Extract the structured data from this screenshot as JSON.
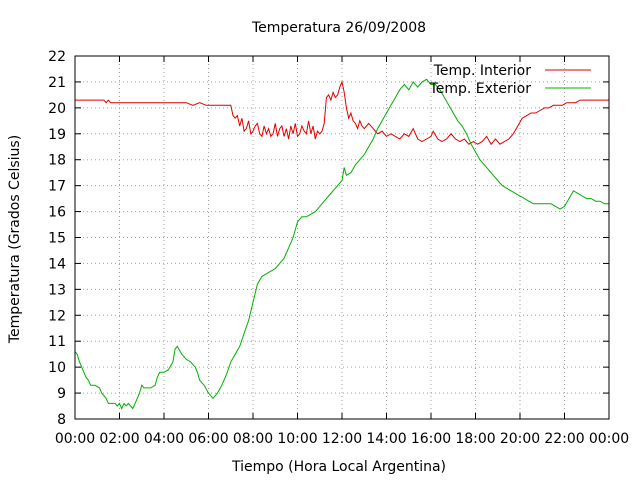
{
  "chart_data": {
    "type": "line",
    "title": "Temperatura 26/09/2008",
    "xlabel": "Tiempo (Hora Local Argentina)",
    "ylabel": "Temperatura (Grados Celsius)",
    "xlim": [
      0,
      24
    ],
    "ylim": [
      8,
      22
    ],
    "x_tick_labels": [
      "00:00",
      "02:00",
      "04:00",
      "06:00",
      "08:00",
      "10:00",
      "12:00",
      "14:00",
      "16:00",
      "18:00",
      "20:00",
      "22:00",
      "00:00"
    ],
    "y_ticks": [
      8,
      9,
      10,
      11,
      12,
      13,
      14,
      15,
      16,
      17,
      18,
      19,
      20,
      21,
      22
    ],
    "grid": true,
    "legend_position": "top-right",
    "series": [
      {
        "name": "Temp. Interior",
        "color": "#e00000",
        "points": [
          [
            0,
            20.3
          ],
          [
            0.5,
            20.3
          ],
          [
            1.0,
            20.3
          ],
          [
            1.3,
            20.3
          ],
          [
            1.4,
            20.2
          ],
          [
            1.5,
            20.3
          ],
          [
            1.6,
            20.2
          ],
          [
            2.0,
            20.2
          ],
          [
            3.0,
            20.2
          ],
          [
            4.0,
            20.2
          ],
          [
            5.0,
            20.2
          ],
          [
            5.3,
            20.1
          ],
          [
            5.6,
            20.2
          ],
          [
            5.9,
            20.1
          ],
          [
            6.2,
            20.1
          ],
          [
            6.5,
            20.1
          ],
          [
            7.0,
            20.1
          ],
          [
            7.1,
            19.7
          ],
          [
            7.2,
            19.6
          ],
          [
            7.3,
            19.7
          ],
          [
            7.4,
            19.3
          ],
          [
            7.5,
            19.6
          ],
          [
            7.6,
            19.1
          ],
          [
            7.7,
            19.2
          ],
          [
            7.8,
            19.5
          ],
          [
            7.9,
            19.0
          ],
          [
            8.0,
            19.1
          ],
          [
            8.1,
            19.3
          ],
          [
            8.2,
            19.4
          ],
          [
            8.3,
            19.0
          ],
          [
            8.4,
            18.9
          ],
          [
            8.5,
            19.3
          ],
          [
            8.6,
            19.0
          ],
          [
            8.7,
            19.2
          ],
          [
            8.8,
            18.9
          ],
          [
            8.9,
            19.0
          ],
          [
            9.0,
            19.4
          ],
          [
            9.1,
            18.9
          ],
          [
            9.2,
            19.2
          ],
          [
            9.3,
            19.3
          ],
          [
            9.4,
            18.9
          ],
          [
            9.5,
            19.2
          ],
          [
            9.6,
            18.8
          ],
          [
            9.7,
            19.3
          ],
          [
            9.8,
            19.0
          ],
          [
            9.9,
            19.4
          ],
          [
            10.0,
            18.9
          ],
          [
            10.1,
            19.0
          ],
          [
            10.2,
            19.3
          ],
          [
            10.3,
            19.1
          ],
          [
            10.4,
            19.0
          ],
          [
            10.5,
            19.5
          ],
          [
            10.6,
            19.0
          ],
          [
            10.7,
            19.3
          ],
          [
            10.8,
            18.8
          ],
          [
            10.9,
            19.1
          ],
          [
            11.0,
            19.0
          ],
          [
            11.1,
            19.1
          ],
          [
            11.2,
            19.4
          ],
          [
            11.3,
            20.4
          ],
          [
            11.4,
            20.5
          ],
          [
            11.5,
            20.3
          ],
          [
            11.6,
            20.6
          ],
          [
            11.7,
            20.4
          ],
          [
            11.8,
            20.5
          ],
          [
            11.9,
            20.8
          ],
          [
            12.0,
            21.0
          ],
          [
            12.1,
            20.6
          ],
          [
            12.2,
            20.0
          ],
          [
            12.3,
            19.6
          ],
          [
            12.4,
            19.8
          ],
          [
            12.5,
            19.5
          ],
          [
            12.6,
            19.4
          ],
          [
            12.7,
            19.2
          ],
          [
            12.8,
            19.5
          ],
          [
            12.9,
            19.3
          ],
          [
            13.0,
            19.2
          ],
          [
            13.2,
            19.4
          ],
          [
            13.4,
            19.2
          ],
          [
            13.6,
            19.0
          ],
          [
            13.8,
            19.1
          ],
          [
            14.0,
            18.9
          ],
          [
            14.2,
            19.0
          ],
          [
            14.4,
            18.9
          ],
          [
            14.6,
            18.8
          ],
          [
            14.8,
            19.0
          ],
          [
            15.0,
            18.9
          ],
          [
            15.2,
            19.2
          ],
          [
            15.4,
            18.8
          ],
          [
            15.6,
            18.7
          ],
          [
            15.8,
            18.8
          ],
          [
            16.0,
            18.9
          ],
          [
            16.1,
            19.1
          ],
          [
            16.3,
            18.8
          ],
          [
            16.5,
            18.7
          ],
          [
            16.7,
            18.8
          ],
          [
            16.9,
            19.0
          ],
          [
            17.1,
            18.8
          ],
          [
            17.3,
            18.7
          ],
          [
            17.5,
            18.8
          ],
          [
            17.7,
            18.6
          ],
          [
            17.9,
            18.7
          ],
          [
            18.1,
            18.6
          ],
          [
            18.3,
            18.7
          ],
          [
            18.5,
            18.9
          ],
          [
            18.7,
            18.6
          ],
          [
            18.9,
            18.8
          ],
          [
            19.1,
            18.6
          ],
          [
            19.3,
            18.7
          ],
          [
            19.5,
            18.8
          ],
          [
            19.7,
            19.0
          ],
          [
            19.9,
            19.3
          ],
          [
            20.1,
            19.6
          ],
          [
            20.3,
            19.7
          ],
          [
            20.5,
            19.8
          ],
          [
            20.7,
            19.8
          ],
          [
            20.9,
            19.9
          ],
          [
            21.1,
            20.0
          ],
          [
            21.3,
            20.0
          ],
          [
            21.5,
            20.1
          ],
          [
            21.7,
            20.1
          ],
          [
            21.9,
            20.1
          ],
          [
            22.1,
            20.2
          ],
          [
            22.3,
            20.2
          ],
          [
            22.5,
            20.2
          ],
          [
            22.7,
            20.3
          ],
          [
            23.0,
            20.3
          ],
          [
            23.5,
            20.3
          ],
          [
            24.0,
            20.3
          ]
        ]
      },
      {
        "name": "Temp. Exterior",
        "color": "#00b000",
        "points": [
          [
            0,
            10.6
          ],
          [
            0.1,
            10.5
          ],
          [
            0.2,
            10.2
          ],
          [
            0.3,
            10.0
          ],
          [
            0.4,
            9.8
          ],
          [
            0.5,
            9.6
          ],
          [
            0.6,
            9.5
          ],
          [
            0.7,
            9.3
          ],
          [
            0.9,
            9.3
          ],
          [
            1.1,
            9.2
          ],
          [
            1.2,
            9.0
          ],
          [
            1.3,
            8.9
          ],
          [
            1.4,
            8.8
          ],
          [
            1.5,
            8.6
          ],
          [
            1.6,
            8.6
          ],
          [
            1.7,
            8.6
          ],
          [
            1.8,
            8.6
          ],
          [
            1.9,
            8.5
          ],
          [
            2.0,
            8.6
          ],
          [
            2.1,
            8.4
          ],
          [
            2.2,
            8.6
          ],
          [
            2.3,
            8.5
          ],
          [
            2.4,
            8.6
          ],
          [
            2.5,
            8.5
          ],
          [
            2.6,
            8.4
          ],
          [
            2.7,
            8.6
          ],
          [
            2.8,
            8.8
          ],
          [
            2.9,
            9.0
          ],
          [
            3.0,
            9.3
          ],
          [
            3.1,
            9.2
          ],
          [
            3.2,
            9.2
          ],
          [
            3.4,
            9.2
          ],
          [
            3.6,
            9.3
          ],
          [
            3.7,
            9.6
          ],
          [
            3.8,
            9.8
          ],
          [
            4.0,
            9.8
          ],
          [
            4.2,
            9.9
          ],
          [
            4.4,
            10.2
          ],
          [
            4.5,
            10.7
          ],
          [
            4.6,
            10.8
          ],
          [
            4.8,
            10.5
          ],
          [
            5.0,
            10.3
          ],
          [
            5.2,
            10.2
          ],
          [
            5.4,
            10.0
          ],
          [
            5.5,
            9.8
          ],
          [
            5.6,
            9.5
          ],
          [
            5.8,
            9.3
          ],
          [
            6.0,
            9.0
          ],
          [
            6.2,
            8.8
          ],
          [
            6.4,
            9.0
          ],
          [
            6.6,
            9.3
          ],
          [
            6.8,
            9.7
          ],
          [
            7.0,
            10.2
          ],
          [
            7.2,
            10.5
          ],
          [
            7.4,
            10.8
          ],
          [
            7.6,
            11.3
          ],
          [
            7.8,
            11.8
          ],
          [
            8.0,
            12.5
          ],
          [
            8.2,
            13.2
          ],
          [
            8.4,
            13.5
          ],
          [
            8.6,
            13.6
          ],
          [
            8.8,
            13.7
          ],
          [
            9.0,
            13.8
          ],
          [
            9.2,
            14.0
          ],
          [
            9.4,
            14.2
          ],
          [
            9.6,
            14.6
          ],
          [
            9.8,
            15.0
          ],
          [
            10.0,
            15.6
          ],
          [
            10.2,
            15.8
          ],
          [
            10.4,
            15.8
          ],
          [
            10.6,
            15.9
          ],
          [
            10.8,
            16.0
          ],
          [
            11.0,
            16.2
          ],
          [
            11.2,
            16.4
          ],
          [
            11.4,
            16.6
          ],
          [
            11.6,
            16.8
          ],
          [
            11.8,
            17.0
          ],
          [
            12.0,
            17.2
          ],
          [
            12.1,
            17.7
          ],
          [
            12.2,
            17.4
          ],
          [
            12.4,
            17.5
          ],
          [
            12.6,
            17.8
          ],
          [
            12.8,
            18.0
          ],
          [
            13.0,
            18.2
          ],
          [
            13.2,
            18.5
          ],
          [
            13.4,
            18.8
          ],
          [
            13.6,
            19.2
          ],
          [
            13.8,
            19.5
          ],
          [
            14.0,
            19.8
          ],
          [
            14.2,
            20.1
          ],
          [
            14.4,
            20.4
          ],
          [
            14.6,
            20.7
          ],
          [
            14.8,
            20.9
          ],
          [
            15.0,
            20.7
          ],
          [
            15.2,
            21.0
          ],
          [
            15.4,
            20.8
          ],
          [
            15.6,
            21.0
          ],
          [
            15.8,
            21.1
          ],
          [
            16.0,
            20.9
          ],
          [
            16.2,
            20.9
          ],
          [
            16.4,
            20.7
          ],
          [
            16.6,
            20.4
          ],
          [
            16.8,
            20.1
          ],
          [
            17.0,
            19.8
          ],
          [
            17.2,
            19.5
          ],
          [
            17.4,
            19.3
          ],
          [
            17.6,
            19.0
          ],
          [
            17.8,
            18.6
          ],
          [
            18.0,
            18.3
          ],
          [
            18.2,
            18.0
          ],
          [
            18.4,
            17.8
          ],
          [
            18.6,
            17.6
          ],
          [
            18.8,
            17.4
          ],
          [
            19.0,
            17.2
          ],
          [
            19.2,
            17.0
          ],
          [
            19.4,
            16.9
          ],
          [
            19.6,
            16.8
          ],
          [
            19.8,
            16.7
          ],
          [
            20.0,
            16.6
          ],
          [
            20.2,
            16.5
          ],
          [
            20.4,
            16.4
          ],
          [
            20.6,
            16.3
          ],
          [
            20.8,
            16.3
          ],
          [
            21.0,
            16.3
          ],
          [
            21.2,
            16.3
          ],
          [
            21.4,
            16.3
          ],
          [
            21.6,
            16.2
          ],
          [
            21.8,
            16.1
          ],
          [
            22.0,
            16.2
          ],
          [
            22.2,
            16.5
          ],
          [
            22.4,
            16.8
          ],
          [
            22.6,
            16.7
          ],
          [
            22.8,
            16.6
          ],
          [
            23.0,
            16.5
          ],
          [
            23.2,
            16.5
          ],
          [
            23.4,
            16.4
          ],
          [
            23.6,
            16.4
          ],
          [
            23.8,
            16.3
          ],
          [
            24.0,
            16.3
          ]
        ]
      }
    ]
  }
}
